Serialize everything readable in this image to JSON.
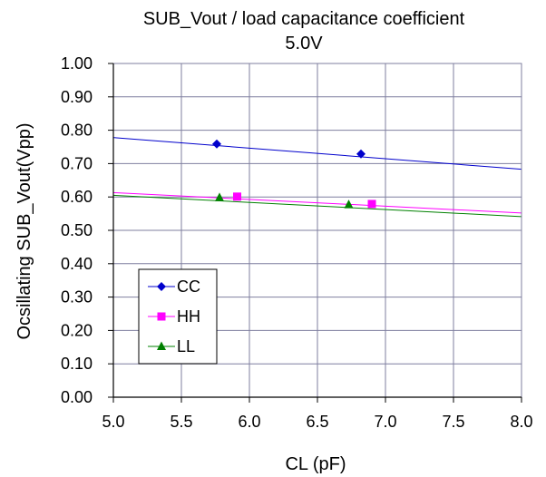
{
  "chart_data": {
    "type": "scatter",
    "title": "SUB_Vout  / load capacitance coefficient",
    "subtitle": "5.0V",
    "xlabel": "CL (pF)",
    "ylabel": "Ocsillating SUB_Vout(Vpp)",
    "xlim": [
      5.0,
      8.0
    ],
    "ylim": [
      0.0,
      1.0
    ],
    "x_ticks": [
      "5.0",
      "5.5",
      "6.0",
      "6.5",
      "7.0",
      "7.5",
      "8.0"
    ],
    "y_ticks": [
      "0.00",
      "0.10",
      "0.20",
      "0.30",
      "0.40",
      "0.50",
      "0.60",
      "0.70",
      "0.80",
      "0.90",
      "1.00"
    ],
    "grid": true,
    "legend_position": "bottom-left",
    "series": [
      {
        "name": "CC",
        "color": "#0000CC",
        "marker": "diamond",
        "points": [
          [
            5.76,
            0.759
          ],
          [
            6.82,
            0.729
          ]
        ],
        "trendline": [
          [
            5.0,
            0.778
          ],
          [
            8.0,
            0.683
          ]
        ]
      },
      {
        "name": "HH",
        "color": "#FF00FF",
        "marker": "square",
        "points": [
          [
            5.91,
            0.601
          ],
          [
            6.9,
            0.579
          ]
        ],
        "trendline": [
          [
            5.0,
            0.613
          ],
          [
            8.0,
            0.552
          ]
        ]
      },
      {
        "name": "LL",
        "color": "#008000",
        "marker": "triangle",
        "points": [
          [
            5.78,
            0.598
          ],
          [
            6.73,
            0.577
          ]
        ],
        "trendline": [
          [
            5.0,
            0.605
          ],
          [
            8.0,
            0.541
          ]
        ]
      }
    ]
  }
}
